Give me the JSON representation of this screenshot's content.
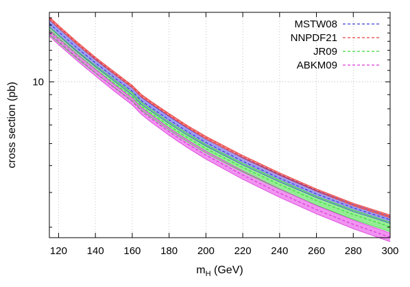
{
  "chart_data": {
    "type": "line",
    "xlabel_main": "m",
    "xlabel_sub": "H",
    "xlabel_rest": " (GeV)",
    "ylabel": "cross section (pb)",
    "xlim": [
      115,
      300
    ],
    "ylim": [
      2.75,
      17.8
    ],
    "ylog": true,
    "grid": true,
    "legend_position": "top-right",
    "x_ticks": [
      120,
      140,
      160,
      180,
      200,
      220,
      240,
      260,
      280,
      300
    ],
    "y_ticks": [
      10
    ],
    "x": [
      115,
      120,
      130,
      140,
      150,
      160,
      165,
      170,
      180,
      190,
      200,
      220,
      240,
      260,
      280,
      300
    ],
    "series": [
      {
        "name": "MSTW08",
        "color": "#3a3ad8",
        "band_color": "#8c8cf0",
        "values": [
          16.25,
          15.15,
          13.25,
          11.7,
          10.4,
          9.25,
          8.55,
          8.1,
          7.3,
          6.62,
          6.05,
          5.18,
          4.5,
          3.95,
          3.52,
          3.19
        ],
        "band_lo": [
          15.75,
          14.7,
          12.85,
          11.35,
          10.1,
          8.98,
          8.3,
          7.87,
          7.09,
          6.43,
          5.88,
          5.03,
          4.37,
          3.84,
          3.42,
          3.1
        ],
        "band_hi": [
          16.75,
          15.6,
          13.65,
          12.05,
          10.7,
          9.52,
          8.8,
          8.33,
          7.51,
          6.81,
          6.22,
          5.33,
          4.63,
          4.06,
          3.62,
          3.28
        ]
      },
      {
        "name": "NNPDF21",
        "color": "#e83c3c",
        "band_color": "#f07878",
        "values": [
          16.95,
          15.8,
          13.8,
          12.15,
          10.8,
          9.62,
          8.92,
          8.45,
          7.62,
          6.9,
          6.3,
          5.38,
          4.66,
          4.08,
          3.62,
          3.28
        ],
        "band_lo": [
          16.75,
          15.62,
          13.65,
          12.02,
          10.68,
          9.52,
          8.82,
          8.36,
          7.54,
          6.83,
          6.23,
          5.32,
          4.61,
          4.04,
          3.58,
          3.24
        ],
        "band_hi": [
          17.15,
          15.98,
          13.95,
          12.28,
          10.92,
          9.72,
          9.02,
          8.54,
          7.7,
          6.97,
          6.37,
          5.44,
          4.71,
          4.12,
          3.66,
          3.32
        ]
      },
      {
        "name": "JR09",
        "color": "#3cd83c",
        "band_color": "#80ea80",
        "values": [
          15.3,
          14.3,
          12.55,
          11.1,
          9.9,
          8.85,
          8.18,
          7.72,
          6.95,
          6.3,
          5.75,
          4.92,
          4.27,
          3.74,
          3.33,
          3.01
        ],
        "band_lo": [
          14.8,
          13.85,
          12.15,
          10.75,
          9.58,
          8.55,
          7.92,
          7.48,
          6.72,
          6.08,
          5.55,
          4.74,
          4.11,
          3.6,
          3.2,
          2.89
        ],
        "band_hi": [
          15.8,
          14.75,
          12.95,
          11.45,
          10.22,
          9.15,
          8.45,
          7.98,
          7.18,
          6.52,
          5.95,
          5.1,
          4.43,
          3.88,
          3.46,
          3.13
        ]
      },
      {
        "name": "ABKM09",
        "color": "#d838d8",
        "band_color": "#ee80ee",
        "values": [
          15.0,
          14.0,
          12.25,
          10.8,
          9.55,
          8.5,
          7.85,
          7.4,
          6.62,
          5.98,
          5.45,
          4.62,
          3.98,
          3.47,
          3.07,
          2.76
        ],
        "band_lo": [
          14.6,
          13.62,
          11.92,
          10.5,
          9.28,
          8.26,
          7.63,
          7.18,
          6.42,
          5.79,
          5.27,
          4.46,
          3.84,
          3.35,
          2.96,
          2.66
        ],
        "band_hi": [
          15.4,
          14.38,
          12.58,
          11.1,
          9.82,
          8.74,
          8.07,
          7.62,
          6.82,
          6.17,
          5.63,
          4.78,
          4.12,
          3.59,
          3.18,
          2.86
        ]
      }
    ]
  }
}
